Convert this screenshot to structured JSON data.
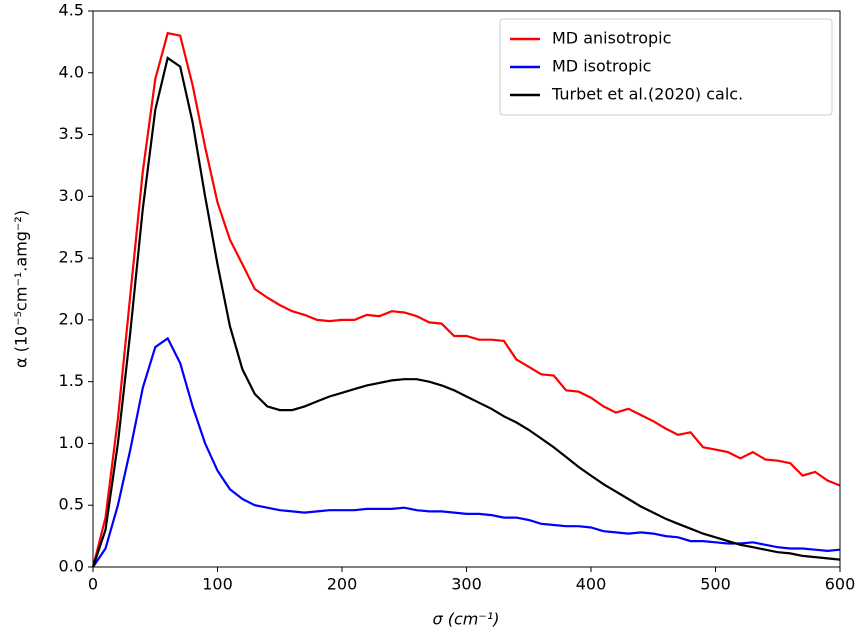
{
  "chart_data": {
    "type": "line",
    "x_label": "σ (cm⁻¹)",
    "y_label": "α (10⁻⁵cm⁻¹.amg⁻²)",
    "x": [
      0,
      10,
      20,
      30,
      40,
      50,
      60,
      70,
      80,
      90,
      100,
      110,
      120,
      130,
      140,
      150,
      160,
      170,
      180,
      190,
      200,
      210,
      220,
      230,
      240,
      250,
      260,
      270,
      280,
      290,
      300,
      310,
      320,
      330,
      340,
      350,
      360,
      370,
      380,
      390,
      400,
      410,
      420,
      430,
      440,
      450,
      460,
      470,
      480,
      490,
      500,
      510,
      520,
      530,
      540,
      550,
      560,
      570,
      580,
      590,
      600
    ],
    "series": [
      {
        "name": "MD anisotropic",
        "color": "#ff0000",
        "values": [
          0,
          0.4,
          1.2,
          2.2,
          3.2,
          3.95,
          4.32,
          4.3,
          3.9,
          3.4,
          2.95,
          2.65,
          2.45,
          2.25,
          2.18,
          2.12,
          2.07,
          2.04,
          2.0,
          1.99,
          2.0,
          2.0,
          2.04,
          2.03,
          2.07,
          2.06,
          2.03,
          1.98,
          1.97,
          1.87,
          1.87,
          1.84,
          1.84,
          1.83,
          1.68,
          1.62,
          1.56,
          1.55,
          1.43,
          1.42,
          1.37,
          1.3,
          1.25,
          1.28,
          1.23,
          1.18,
          1.12,
          1.07,
          1.09,
          0.97,
          0.95,
          0.93,
          0.88,
          0.93,
          0.87,
          0.86,
          0.84,
          0.74,
          0.77,
          0.7,
          0.66
        ]
      },
      {
        "name": "MD isotropic",
        "color": "#0000ff",
        "values": [
          0,
          0.15,
          0.5,
          0.95,
          1.45,
          1.78,
          1.85,
          1.65,
          1.3,
          1.0,
          0.78,
          0.63,
          0.55,
          0.5,
          0.48,
          0.46,
          0.45,
          0.44,
          0.45,
          0.46,
          0.46,
          0.46,
          0.47,
          0.47,
          0.47,
          0.48,
          0.46,
          0.45,
          0.45,
          0.44,
          0.43,
          0.43,
          0.42,
          0.4,
          0.4,
          0.38,
          0.35,
          0.34,
          0.33,
          0.33,
          0.32,
          0.29,
          0.28,
          0.27,
          0.28,
          0.27,
          0.25,
          0.24,
          0.21,
          0.21,
          0.2,
          0.19,
          0.19,
          0.2,
          0.18,
          0.16,
          0.15,
          0.15,
          0.14,
          0.13,
          0.14
        ]
      },
      {
        "name": "Turbet et al.(2020) calc.",
        "color": "#000000",
        "values": [
          0,
          0.3,
          1.0,
          1.9,
          2.9,
          3.7,
          4.12,
          4.05,
          3.6,
          3.0,
          2.45,
          1.95,
          1.6,
          1.4,
          1.3,
          1.27,
          1.27,
          1.3,
          1.34,
          1.38,
          1.41,
          1.44,
          1.47,
          1.49,
          1.51,
          1.52,
          1.52,
          1.5,
          1.47,
          1.43,
          1.38,
          1.33,
          1.28,
          1.22,
          1.17,
          1.11,
          1.04,
          0.97,
          0.89,
          0.81,
          0.74,
          0.67,
          0.61,
          0.55,
          0.49,
          0.44,
          0.39,
          0.35,
          0.31,
          0.27,
          0.24,
          0.21,
          0.18,
          0.16,
          0.14,
          0.12,
          0.11,
          0.09,
          0.08,
          0.07,
          0.06
        ]
      }
    ],
    "xlim": [
      0,
      600
    ],
    "ylim": [
      0,
      4.5
    ],
    "xticks": [
      0,
      100,
      200,
      300,
      400,
      500,
      600
    ],
    "yticks": [
      {
        "value": 0,
        "label": "0.0"
      },
      {
        "value": 0.5,
        "label": "0.5"
      },
      {
        "value": 1,
        "label": "1.0"
      },
      {
        "value": 1.5,
        "label": "1.5"
      },
      {
        "value": 2,
        "label": "2.0"
      },
      {
        "value": 2.5,
        "label": "2.5"
      },
      {
        "value": 3,
        "label": "3.0"
      },
      {
        "value": 3.5,
        "label": "3.5"
      },
      {
        "value": 4,
        "label": "4.0"
      },
      {
        "value": 4.5,
        "label": "4.5"
      }
    ],
    "grid": false,
    "legend": "upper right"
  }
}
